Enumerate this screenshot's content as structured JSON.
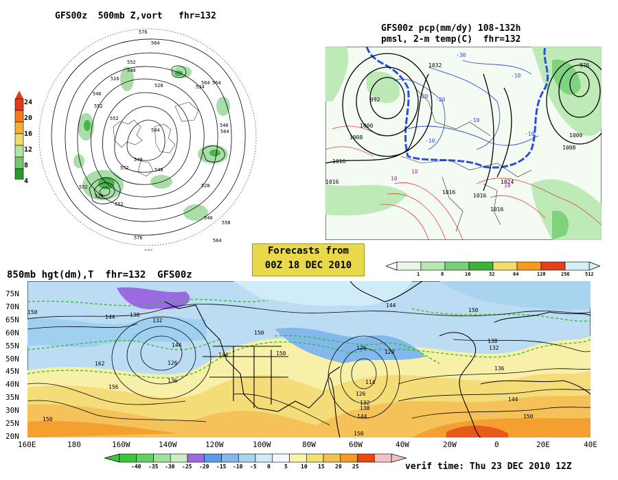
{
  "panel_nh": {
    "title": "GFS00z  500mb Z,vort   fhr=132",
    "colorbar_colors": [
      "#2a9a2a",
      "#72c872",
      "#b4e4a4",
      "#f0dc6a",
      "#f5b034",
      "#f57c1e",
      "#e23a1a"
    ],
    "colorbar_labels": [
      "24",
      "20",
      "16",
      "12",
      "8",
      "4"
    ],
    "contour_labels": [
      "576",
      "564",
      "552",
      "540",
      "516",
      "528",
      "504",
      "546",
      "552",
      "564",
      "534",
      "540",
      "552",
      "528",
      "528",
      "540",
      "540",
      "552",
      "564",
      "558",
      "576",
      "564",
      "576",
      "552",
      "564",
      "552",
      "540"
    ]
  },
  "panel_na": {
    "title_line1": "GFS00z pcp(mm/dy) 108-132h",
    "title_line2": "pmsl, 2-m temp(C)  fhr=132",
    "pressure_labels": [
      "992",
      "1000",
      "1008",
      "1016",
      "1016",
      "1016",
      "1016",
      "1008",
      "1000",
      "976",
      "1032",
      "1024",
      "1016"
    ],
    "temp_labels": [
      "-30",
      "-20",
      "-20",
      "-10",
      "-10",
      "-10",
      "-10",
      "10",
      "10",
      "10"
    ],
    "colorbar_colors": [
      "#e8f7e8",
      "#b8e8b0",
      "#78d078",
      "#3cb43c",
      "#f0dc6a",
      "#f59a1e",
      "#e2401a",
      "#d0f0f5"
    ],
    "colorbar_labels": [
      "1",
      "8",
      "16",
      "32",
      "64",
      "128",
      "256",
      "512"
    ]
  },
  "forecast_box": {
    "line1": "Forecasts from",
    "line2": "00Z 18 DEC 2010"
  },
  "panel_850": {
    "title": "850mb hgt(dm),T  fhr=132  GFS00z",
    "lat_labels": [
      "75N",
      "70N",
      "65N",
      "60N",
      "55N",
      "50N",
      "45N",
      "40N",
      "35N",
      "30N",
      "25N",
      "20N"
    ],
    "lon_labels": [
      "160E",
      "180",
      "160W",
      "140W",
      "120W",
      "100W",
      "80W",
      "60W",
      "40W",
      "20W",
      "0",
      "20E",
      "40E"
    ],
    "height_labels": [
      "150",
      "144",
      "138",
      "132",
      "162",
      "156",
      "144",
      "126",
      "136",
      "144",
      "150",
      "144",
      "150",
      "126",
      "120",
      "114",
      "126",
      "132",
      "138",
      "144",
      "150",
      "150",
      "138",
      "132",
      "136",
      "150",
      "144",
      "150"
    ],
    "colorbar_colors": [
      "#3cc83c",
      "#64d064",
      "#a0e0a0",
      "#ccecc8",
      "#9a6ae0",
      "#5a9ce8",
      "#82b8ec",
      "#a8d4f0",
      "#d0ecf8",
      "#f4f8fc",
      "#f8f4b0",
      "#f4e070",
      "#f4c050",
      "#f49a28",
      "#e84a12",
      "#f4c0c8"
    ],
    "colorbar_labels": [
      "-40",
      "-35",
      "-30",
      "-25",
      "-20",
      "-15",
      "-10",
      "-5",
      "0",
      "5",
      "10",
      "15",
      "20",
      "25"
    ]
  },
  "verif_time": "verif time: Thu 23 DEC 2010 12Z"
}
